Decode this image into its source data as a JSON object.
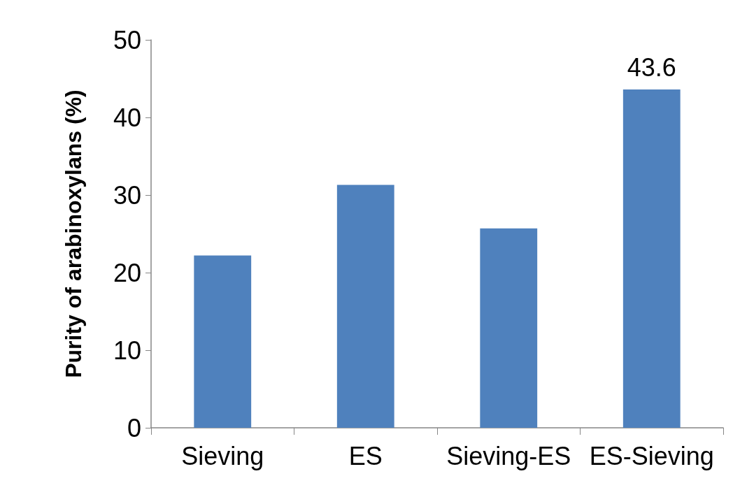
{
  "chart_data": {
    "type": "bar",
    "ylabel": "Purity of arabinoxylans (%)",
    "categories": [
      "Sieving",
      "ES",
      "Sieving-ES",
      "ES-Sieving"
    ],
    "values": [
      22.2,
      31.3,
      25.7,
      43.6
    ],
    "value_labels": [
      null,
      null,
      null,
      "43.6"
    ],
    "color": "#4f81bd",
    "ylim": [
      0,
      50
    ],
    "yticks": [
      0,
      10,
      20,
      30,
      40,
      50
    ],
    "grid": false
  }
}
